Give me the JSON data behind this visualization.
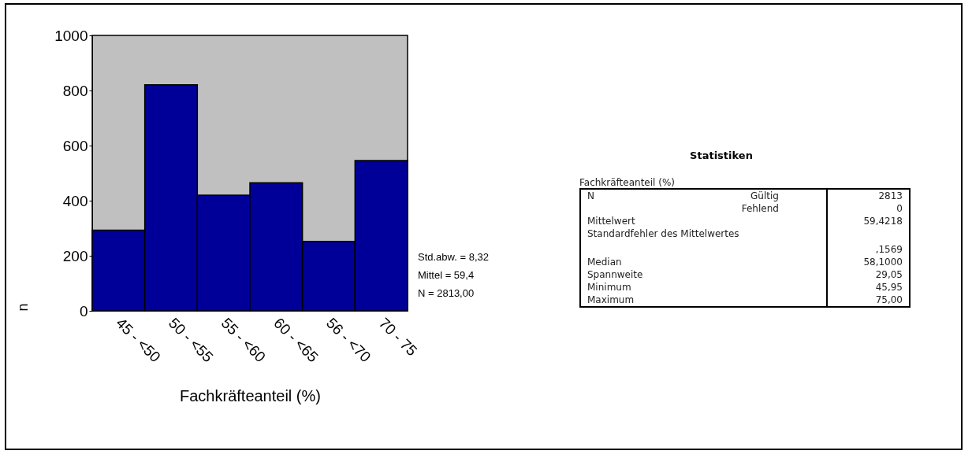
{
  "chart_data": [
    {
      "type": "bar",
      "categories": [
        "45 - <50",
        "50 - <55",
        "55 - <60",
        "60 - <65",
        "56 - <70",
        "70 - 75"
      ],
      "values": [
        293,
        821,
        420,
        465,
        252,
        546
      ],
      "color": "#000099",
      "ylim": [
        0,
        1000
      ],
      "yticks": [
        0,
        200,
        400,
        600,
        800,
        1000
      ],
      "xlabel": "Fachkräfteanteil (%)",
      "ylabel": "n",
      "grid": false,
      "annotations": [
        "Std.abw. = 8,32",
        "Mittel = 59,4",
        "N = 2813,00"
      ]
    },
    {
      "type": "other",
      "title": "Statistiken",
      "subtitle": "Fachkräfteanteil (%)",
      "annotations": [
        "N",
        "Gültig",
        "2813",
        "Fehlend",
        "0",
        "Mittelwert",
        "59,4218",
        "Standardfehler des Mittelwertes",
        ",1569",
        "Median",
        "58,1000",
        "Spannweite",
        "29,05",
        "Minimum",
        "45,95",
        "Maximum",
        "75,00"
      ]
    }
  ]
}
